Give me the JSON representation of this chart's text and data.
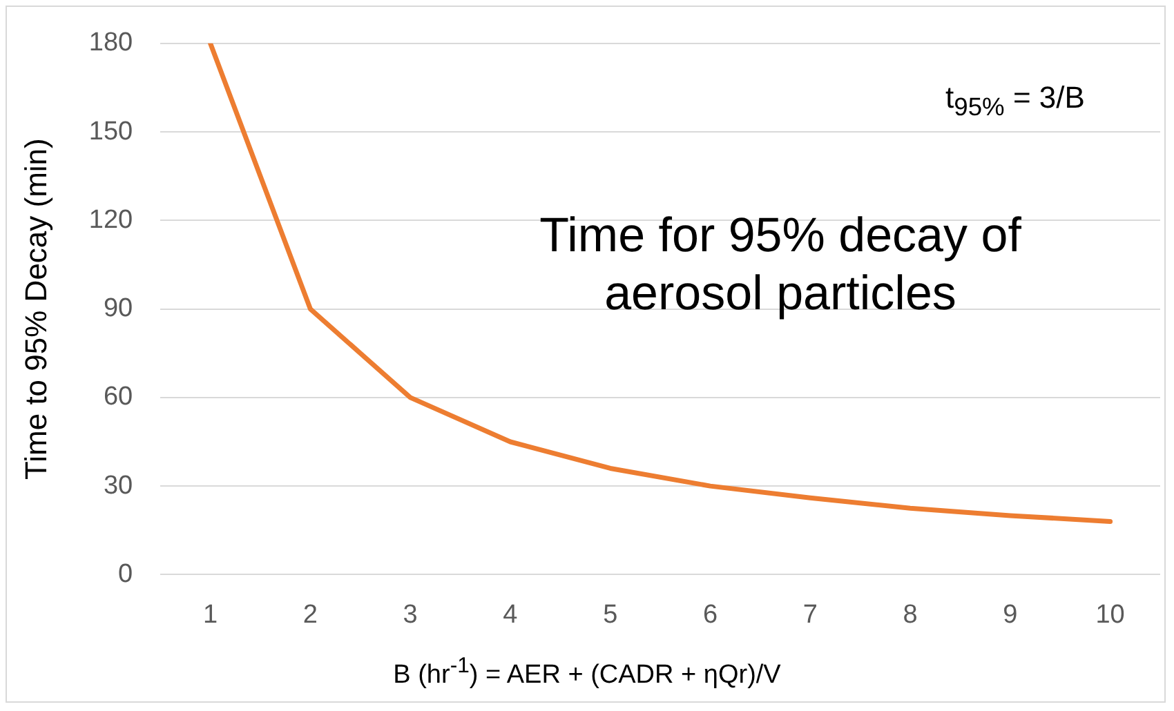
{
  "chart_data": {
    "type": "line",
    "xlabel": "B (hr$^{-1}$) = AER + (CADR + ηQr)/V",
    "ylabel": "Time to 95% Decay (min)",
    "annotations": [
      "t$_{95%}$ = 3/B",
      "Time for 95% decay of aerosol particles"
    ],
    "categories": [
      "1",
      "2",
      "3",
      "4",
      "5",
      "6",
      "7",
      "8",
      "9",
      "10"
    ],
    "series": [
      {
        "color": "#ed7d31",
        "values": [
          180,
          90,
          60,
          45,
          36,
          30,
          26,
          22.5,
          20,
          18
        ]
      }
    ],
    "ylim": [
      0,
      180
    ],
    "yticks": [
      0,
      30,
      60,
      90,
      120,
      150,
      180
    ],
    "grid": "y",
    "legend": false,
    "marker": "none",
    "line_style": "solid"
  }
}
